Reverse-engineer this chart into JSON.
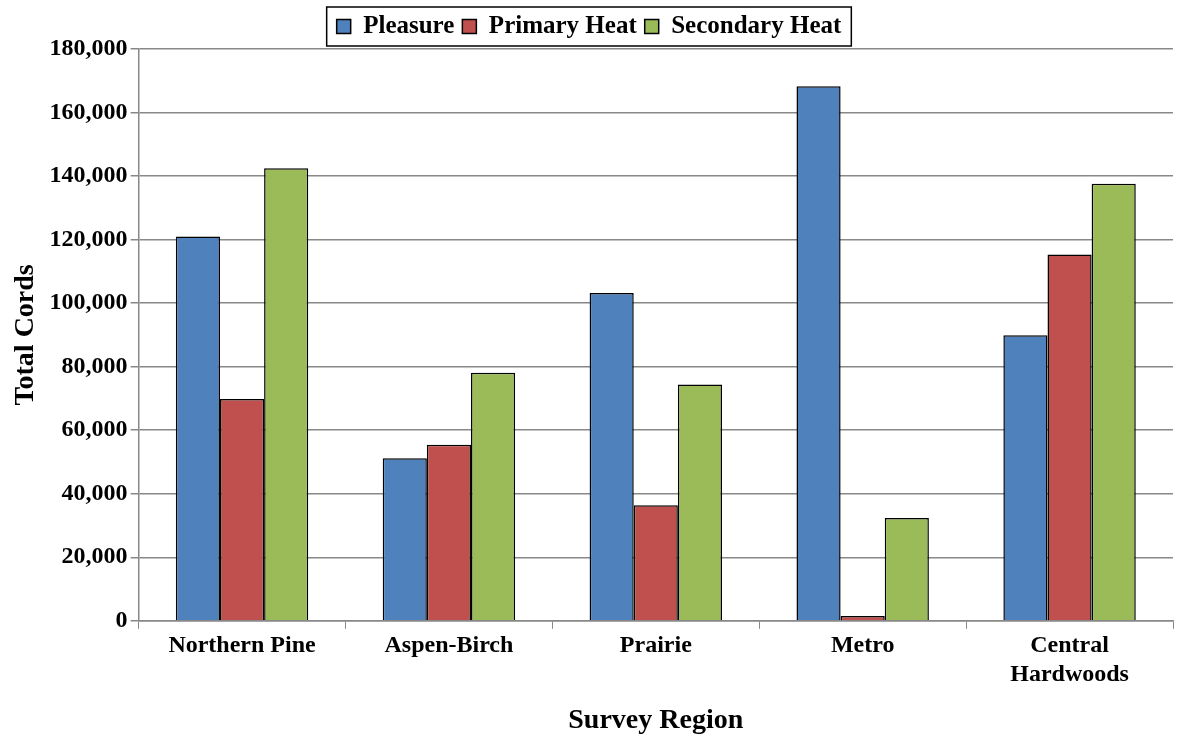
{
  "chart_data": {
    "type": "bar",
    "xlabel": "Survey Region",
    "ylabel": "Total Cords",
    "categories": [
      "Northern Pine",
      "Aspen-Birch",
      "Prairie",
      "Metro",
      "Central Hardwoods"
    ],
    "series": [
      {
        "name": "Pleasure",
        "color": "#4f81bd",
        "values": [
          121000,
          51200,
          103200,
          168300,
          89900
        ]
      },
      {
        "name": "Primary Heat",
        "color": "#c0504d",
        "values": [
          69800,
          55400,
          36400,
          1500,
          115300
        ]
      },
      {
        "name": "Secondary Heat",
        "color": "#9bbb59",
        "values": [
          142500,
          78100,
          74400,
          32400,
          137600
        ]
      }
    ],
    "ylim": [
      0,
      180000
    ],
    "yticks": [
      0,
      {
        "value": 20000,
        "label": "20,000"
      },
      {
        "value": 40000,
        "label": "40,000"
      },
      {
        "value": 60000,
        "label": "60,000"
      },
      {
        "value": 80000,
        "label": "80,000"
      },
      {
        "value": 100000,
        "label": "100,000"
      },
      {
        "value": 120000,
        "label": "120,000"
      },
      {
        "value": 140000,
        "label": "140,000"
      },
      {
        "value": 160000,
        "label": "160,000"
      },
      {
        "value": 180000,
        "label": "180,000"
      }
    ],
    "grid": "y",
    "legend": "top"
  }
}
